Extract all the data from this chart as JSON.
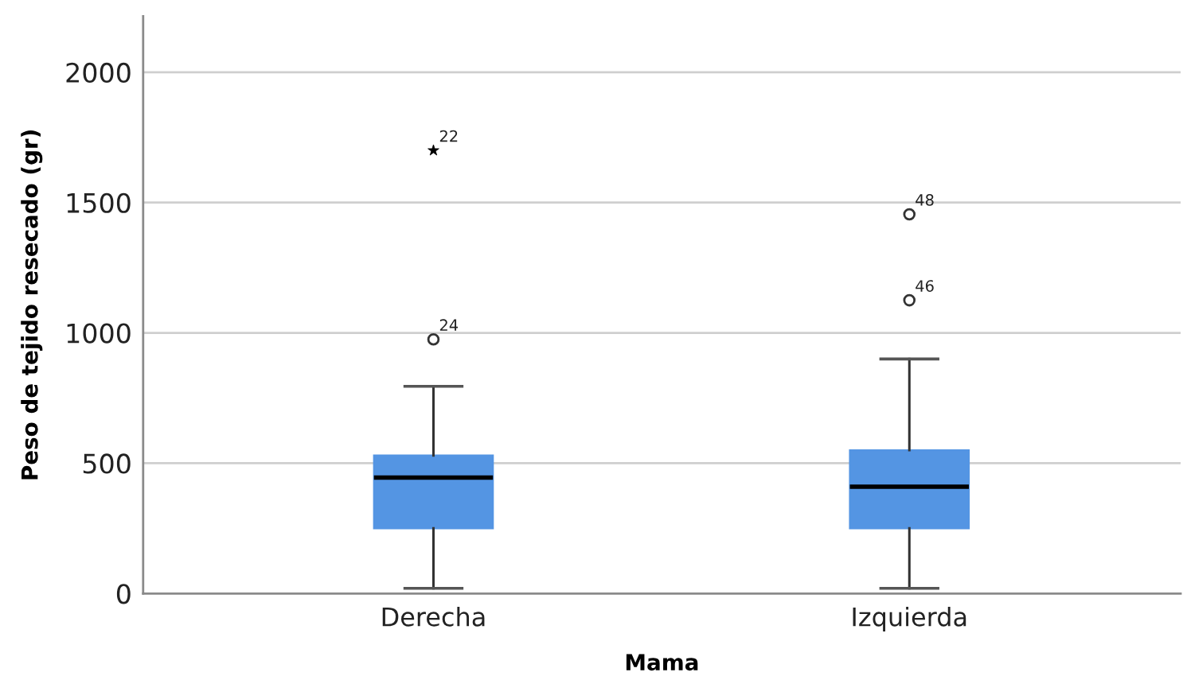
{
  "chart_data": {
    "type": "box",
    "xlabel": "Mama",
    "ylabel": "Peso de tejido resecado (gr)",
    "categories": [
      "Derecha",
      "Izquierda"
    ],
    "series": [
      {
        "color": "#5495e3",
        "boxes": [
          {
            "low": 20,
            "q1": 250,
            "median": 445,
            "q3": 530,
            "high": 795
          },
          {
            "low": 20,
            "q1": 250,
            "median": 410,
            "q3": 550,
            "high": 900
          }
        ]
      },
      {
        "type": "scatter",
        "color": "#333333",
        "marker": "circle",
        "x": [
          "Derecha",
          "Izquierda",
          "Izquierda"
        ],
        "values": [
          975,
          1125,
          1455
        ]
      },
      {
        "type": "scatter",
        "color": "#000000",
        "marker": "star",
        "x": [
          "Derecha"
        ],
        "values": [
          1700
        ]
      }
    ],
    "annotations": [
      {
        "text": "22",
        "x": "Derecha",
        "y": 1700
      },
      {
        "text": "24",
        "x": "Derecha",
        "y": 975
      },
      {
        "text": "48",
        "x": "Izquierda",
        "y": 1455
      },
      {
        "text": "46",
        "x": "Izquierda",
        "y": 1125
      }
    ],
    "ylim": [
      0,
      2215
    ],
    "yticks": [
      0,
      500,
      1000,
      1500,
      2000
    ],
    "grid": "y"
  }
}
